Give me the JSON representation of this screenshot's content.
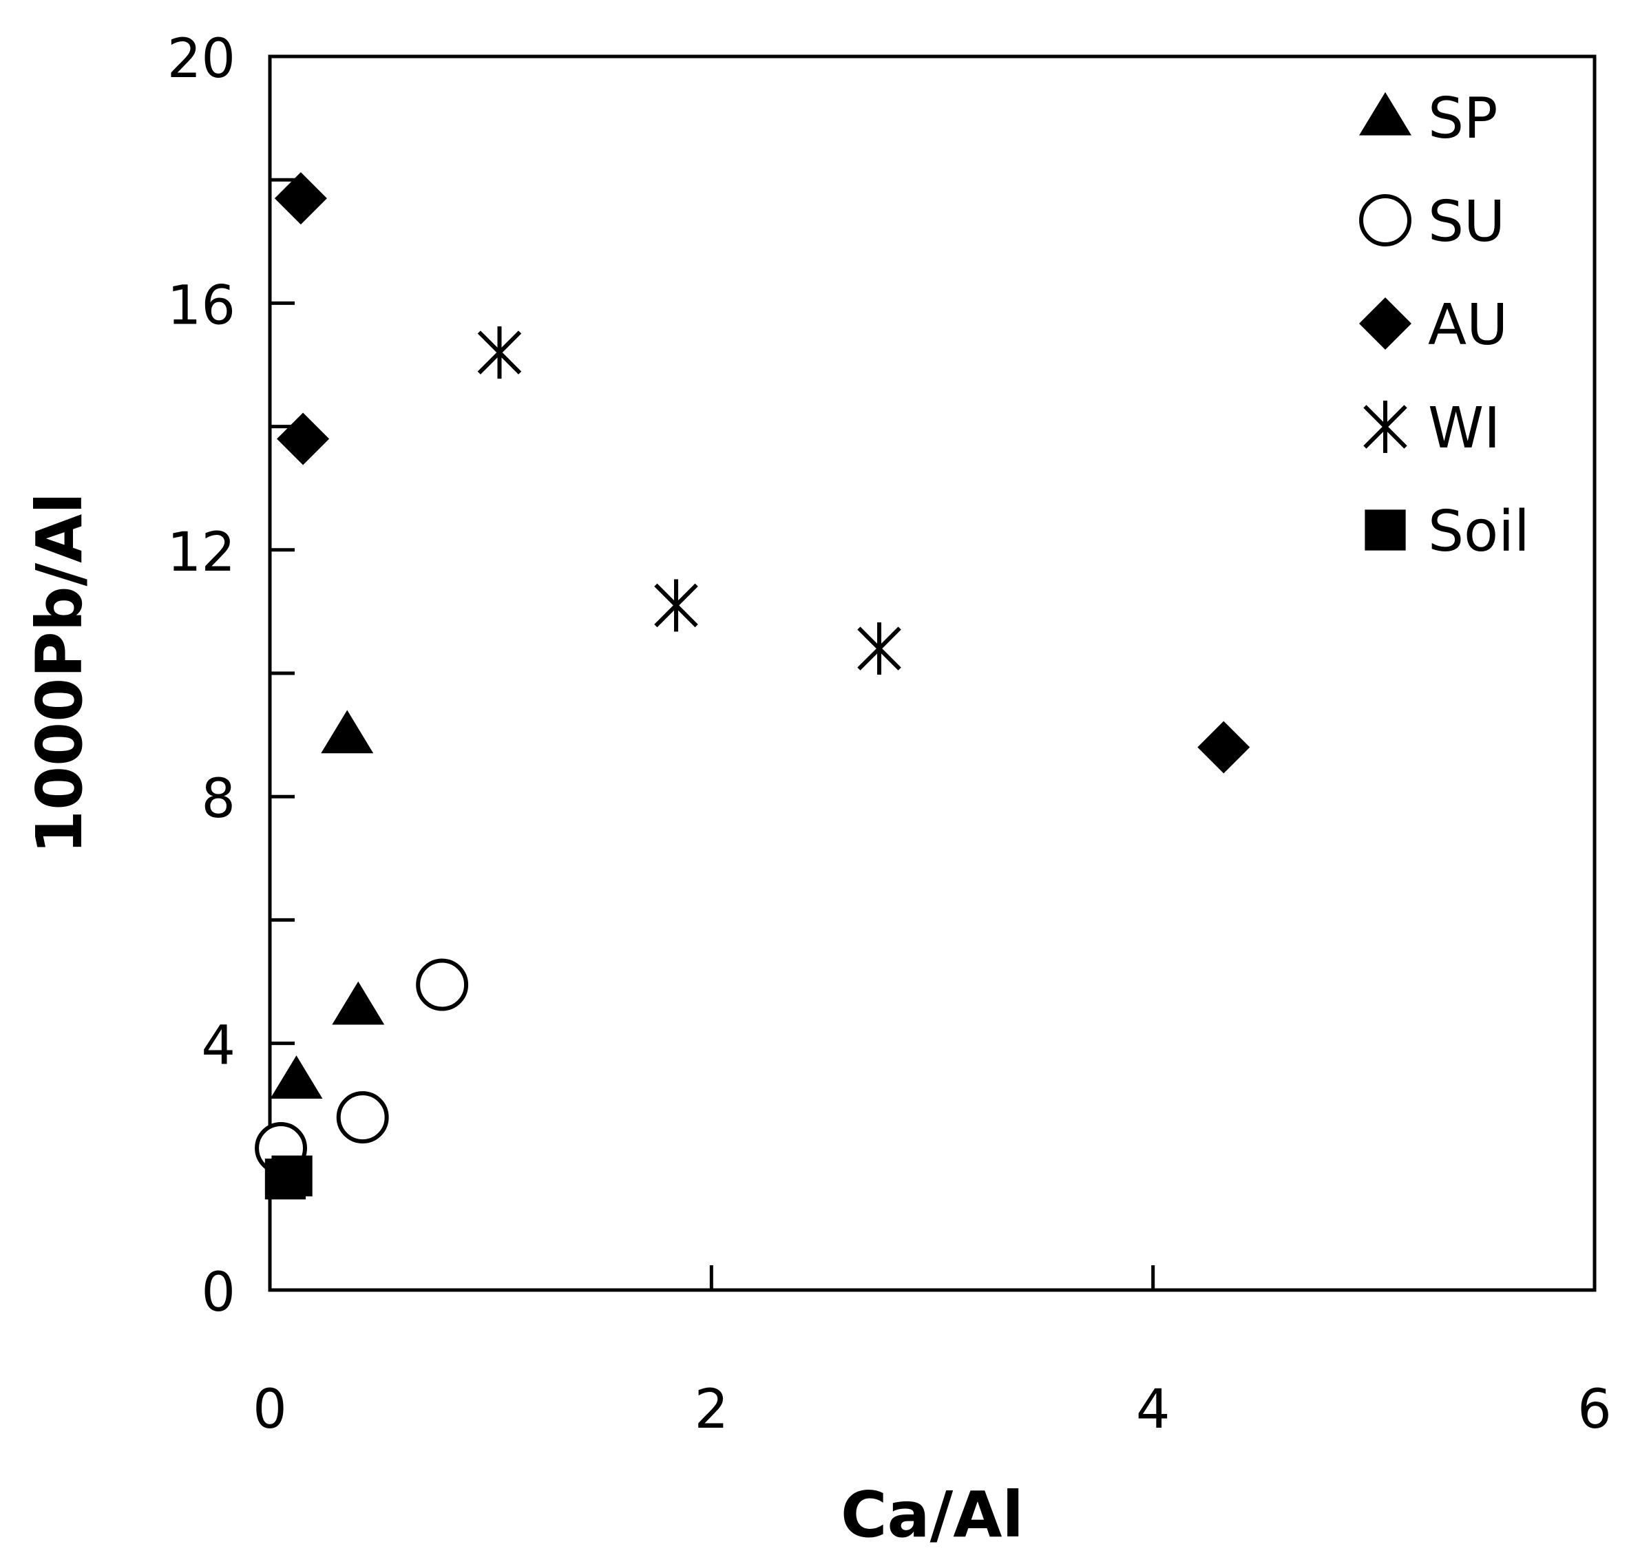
{
  "chart_data": {
    "type": "scatter",
    "title": "",
    "xlabel": "Ca/Al",
    "ylabel": "1000Pb/Al",
    "xlim": [
      0,
      6
    ],
    "ylim": [
      0,
      20
    ],
    "xticks": [
      0,
      2,
      4,
      6
    ],
    "yticks": [
      0,
      4,
      8,
      12,
      16,
      20
    ],
    "x_tick_labels": [
      "0",
      "2",
      "4",
      "6"
    ],
    "y_tick_labels": [
      "0",
      "4",
      "8",
      "12",
      "16",
      "20"
    ],
    "grid": false,
    "legend_position": "top-right",
    "series": [
      {
        "name": "SP",
        "marker": "triangle",
        "color": "#000000",
        "points": [
          [
            0.12,
            3.4
          ],
          [
            0.35,
            9.0
          ],
          [
            0.4,
            4.6
          ]
        ]
      },
      {
        "name": "SU",
        "marker": "circle-open",
        "color": "#000000",
        "points": [
          [
            0.05,
            2.3
          ],
          [
            0.42,
            2.8
          ],
          [
            0.78,
            4.95
          ]
        ]
      },
      {
        "name": "AU",
        "marker": "diamond",
        "color": "#000000",
        "points": [
          [
            0.14,
            17.7
          ],
          [
            0.15,
            13.8
          ],
          [
            4.32,
            8.8
          ]
        ]
      },
      {
        "name": "WI",
        "marker": "asterisk",
        "color": "#000000",
        "points": [
          [
            1.04,
            15.2
          ],
          [
            1.84,
            11.1
          ],
          [
            2.76,
            10.4
          ]
        ]
      },
      {
        "name": "Soil",
        "marker": "square",
        "color": "#000000",
        "points": [
          [
            0.1,
            1.85
          ],
          [
            0.07,
            1.8
          ]
        ]
      }
    ]
  }
}
